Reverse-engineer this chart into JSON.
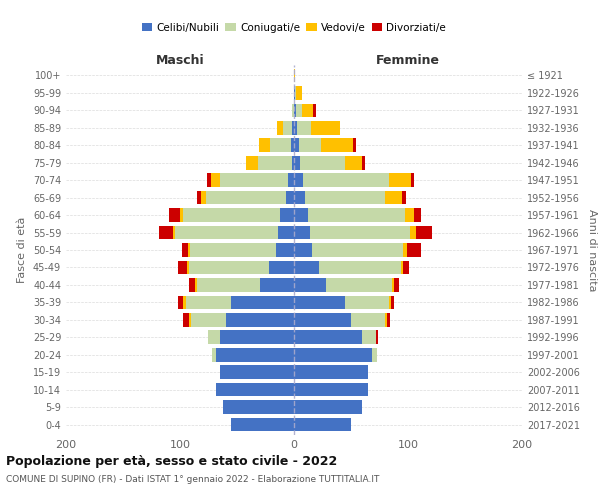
{
  "age_groups": [
    "0-4",
    "5-9",
    "10-14",
    "15-19",
    "20-24",
    "25-29",
    "30-34",
    "35-39",
    "40-44",
    "45-49",
    "50-54",
    "55-59",
    "60-64",
    "65-69",
    "70-74",
    "75-79",
    "80-84",
    "85-89",
    "90-94",
    "95-99",
    "100+"
  ],
  "birth_years": [
    "2017-2021",
    "2012-2016",
    "2007-2011",
    "2002-2006",
    "1997-2001",
    "1992-1996",
    "1987-1991",
    "1982-1986",
    "1977-1981",
    "1972-1976",
    "1967-1971",
    "1962-1966",
    "1957-1961",
    "1952-1956",
    "1947-1951",
    "1942-1946",
    "1937-1941",
    "1932-1936",
    "1927-1931",
    "1922-1926",
    "≤ 1921"
  ],
  "maschi_celibe": [
    55,
    62,
    68,
    65,
    68,
    65,
    60,
    55,
    30,
    22,
    16,
    14,
    12,
    7,
    5,
    2,
    3,
    2,
    0,
    0,
    0
  ],
  "maschi_coniugato": [
    0,
    0,
    0,
    0,
    4,
    10,
    30,
    40,
    55,
    70,
    75,
    90,
    85,
    70,
    60,
    30,
    18,
    8,
    2,
    0,
    0
  ],
  "maschi_vedovo": [
    0,
    0,
    0,
    0,
    0,
    0,
    2,
    2,
    2,
    2,
    2,
    2,
    3,
    5,
    8,
    10,
    10,
    5,
    0,
    0,
    0
  ],
  "maschi_divorziato": [
    0,
    0,
    0,
    0,
    0,
    0,
    5,
    5,
    5,
    8,
    5,
    12,
    10,
    3,
    3,
    0,
    0,
    0,
    0,
    0,
    0
  ],
  "femmine_celibe": [
    50,
    60,
    65,
    65,
    68,
    60,
    50,
    45,
    28,
    22,
    16,
    14,
    12,
    10,
    8,
    5,
    4,
    3,
    2,
    1,
    0
  ],
  "femmine_coniugata": [
    0,
    0,
    0,
    0,
    5,
    12,
    30,
    38,
    58,
    72,
    80,
    88,
    85,
    70,
    75,
    40,
    20,
    12,
    5,
    1,
    0
  ],
  "femmine_vedova": [
    0,
    0,
    0,
    0,
    0,
    0,
    2,
    2,
    2,
    2,
    3,
    5,
    8,
    15,
    20,
    15,
    28,
    25,
    10,
    5,
    1
  ],
  "femmine_divorziata": [
    0,
    0,
    0,
    0,
    0,
    2,
    2,
    3,
    4,
    5,
    12,
    14,
    6,
    3,
    2,
    2,
    2,
    0,
    2,
    0,
    0
  ],
  "color_celibe": "#4472c4",
  "color_coniugato": "#c5d9a8",
  "color_vedovo": "#ffc000",
  "color_divorziato": "#cc0000",
  "title_main": "Popolazione per età, sesso e stato civile - 2022",
  "title_sub": "COMUNE DI SUPINO (FR) - Dati ISTAT 1° gennaio 2022 - Elaborazione TUTTITALIA.IT",
  "xlabel_left": "Maschi",
  "xlabel_right": "Femmine",
  "ylabel_left": "Fasce di età",
  "ylabel_right": "Anni di nascita",
  "xmin": -200,
  "xmax": 200,
  "background_color": "#ffffff",
  "grid_color": "#cccccc"
}
